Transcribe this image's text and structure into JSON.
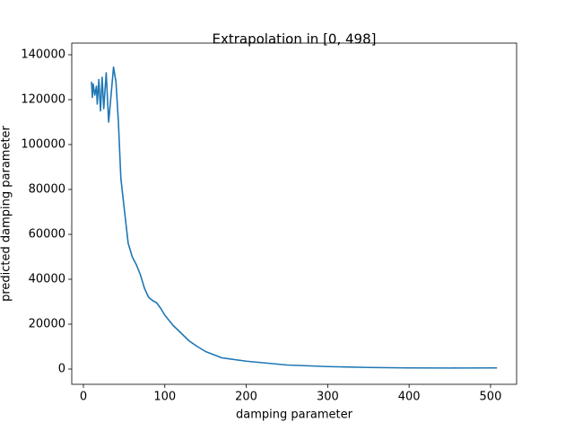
{
  "chart_data": {
    "type": "line",
    "title": "Extrapolation in [0, 498]",
    "x_label": "damping parameter",
    "y_label": "predicted damping parameter",
    "color": "#1f77b4",
    "x": [
      10,
      11,
      12,
      14,
      16,
      17,
      19,
      21,
      23,
      25,
      28,
      31,
      33,
      37,
      40,
      43,
      46,
      50,
      55,
      60,
      65,
      70,
      75,
      80,
      85,
      90,
      95,
      100,
      110,
      120,
      130,
      140,
      150,
      170,
      200,
      250,
      300,
      350,
      400,
      450,
      508
    ],
    "values": [
      128000,
      121000,
      127000,
      122000,
      126000,
      118000,
      129000,
      115000,
      130000,
      116000,
      132000,
      110000,
      118000,
      134500,
      128000,
      110000,
      85000,
      72000,
      56000,
      50000,
      46500,
      42000,
      36000,
      32000,
      30500,
      29500,
      27000,
      24000,
      19500,
      16000,
      12500,
      10000,
      7800,
      5000,
      3500,
      1800,
      1100,
      700,
      500,
      450,
      500
    ],
    "xlim": [
      -14.3,
      532
    ],
    "ylim": [
      -6800,
      145200
    ],
    "xticks": [
      0,
      100,
      200,
      300,
      400,
      500
    ],
    "yticks": [
      0,
      20000,
      40000,
      60000,
      80000,
      100000,
      120000,
      140000
    ]
  }
}
